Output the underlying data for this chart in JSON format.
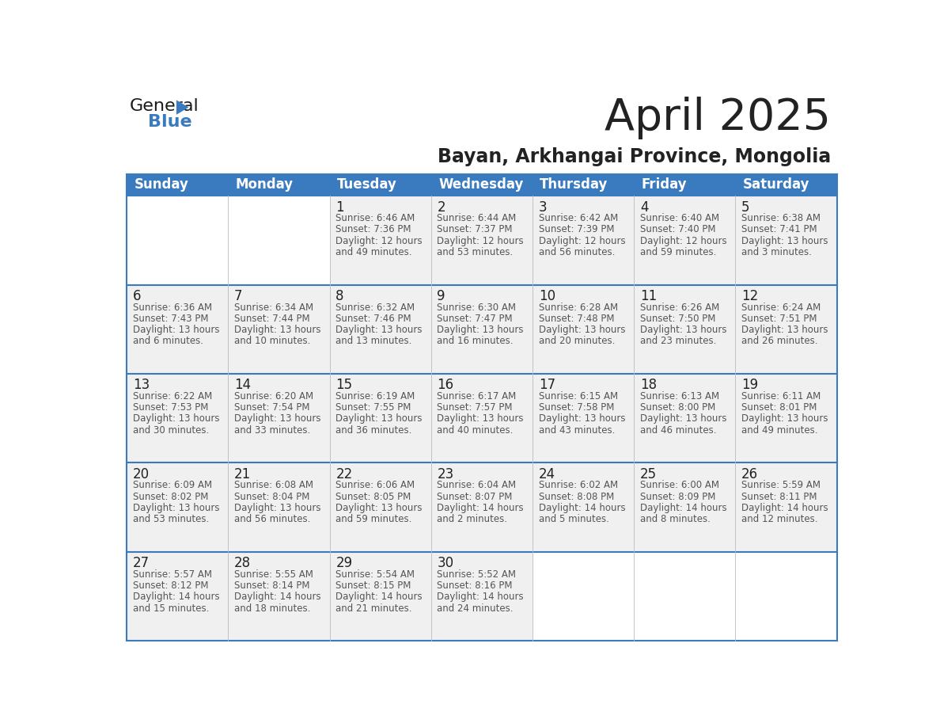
{
  "title": "April 2025",
  "subtitle": "Bayan, Arkhangai Province, Mongolia",
  "header_bg": "#3a7abf",
  "header_text_color": "#ffffff",
  "cell_bg_light": "#f0f0f0",
  "cell_bg_white": "#ffffff",
  "border_color": "#3a7abf",
  "row_border_color": "#4a90c4",
  "days_of_week": [
    "Sunday",
    "Monday",
    "Tuesday",
    "Wednesday",
    "Thursday",
    "Friday",
    "Saturday"
  ],
  "weeks": [
    [
      {
        "day": "",
        "sunrise": "",
        "sunset": "",
        "daylight": ""
      },
      {
        "day": "",
        "sunrise": "",
        "sunset": "",
        "daylight": ""
      },
      {
        "day": "1",
        "sunrise": "Sunrise: 6:46 AM",
        "sunset": "Sunset: 7:36 PM",
        "daylight": "Daylight: 12 hours\nand 49 minutes."
      },
      {
        "day": "2",
        "sunrise": "Sunrise: 6:44 AM",
        "sunset": "Sunset: 7:37 PM",
        "daylight": "Daylight: 12 hours\nand 53 minutes."
      },
      {
        "day": "3",
        "sunrise": "Sunrise: 6:42 AM",
        "sunset": "Sunset: 7:39 PM",
        "daylight": "Daylight: 12 hours\nand 56 minutes."
      },
      {
        "day": "4",
        "sunrise": "Sunrise: 6:40 AM",
        "sunset": "Sunset: 7:40 PM",
        "daylight": "Daylight: 12 hours\nand 59 minutes."
      },
      {
        "day": "5",
        "sunrise": "Sunrise: 6:38 AM",
        "sunset": "Sunset: 7:41 PM",
        "daylight": "Daylight: 13 hours\nand 3 minutes."
      }
    ],
    [
      {
        "day": "6",
        "sunrise": "Sunrise: 6:36 AM",
        "sunset": "Sunset: 7:43 PM",
        "daylight": "Daylight: 13 hours\nand 6 minutes."
      },
      {
        "day": "7",
        "sunrise": "Sunrise: 6:34 AM",
        "sunset": "Sunset: 7:44 PM",
        "daylight": "Daylight: 13 hours\nand 10 minutes."
      },
      {
        "day": "8",
        "sunrise": "Sunrise: 6:32 AM",
        "sunset": "Sunset: 7:46 PM",
        "daylight": "Daylight: 13 hours\nand 13 minutes."
      },
      {
        "day": "9",
        "sunrise": "Sunrise: 6:30 AM",
        "sunset": "Sunset: 7:47 PM",
        "daylight": "Daylight: 13 hours\nand 16 minutes."
      },
      {
        "day": "10",
        "sunrise": "Sunrise: 6:28 AM",
        "sunset": "Sunset: 7:48 PM",
        "daylight": "Daylight: 13 hours\nand 20 minutes."
      },
      {
        "day": "11",
        "sunrise": "Sunrise: 6:26 AM",
        "sunset": "Sunset: 7:50 PM",
        "daylight": "Daylight: 13 hours\nand 23 minutes."
      },
      {
        "day": "12",
        "sunrise": "Sunrise: 6:24 AM",
        "sunset": "Sunset: 7:51 PM",
        "daylight": "Daylight: 13 hours\nand 26 minutes."
      }
    ],
    [
      {
        "day": "13",
        "sunrise": "Sunrise: 6:22 AM",
        "sunset": "Sunset: 7:53 PM",
        "daylight": "Daylight: 13 hours\nand 30 minutes."
      },
      {
        "day": "14",
        "sunrise": "Sunrise: 6:20 AM",
        "sunset": "Sunset: 7:54 PM",
        "daylight": "Daylight: 13 hours\nand 33 minutes."
      },
      {
        "day": "15",
        "sunrise": "Sunrise: 6:19 AM",
        "sunset": "Sunset: 7:55 PM",
        "daylight": "Daylight: 13 hours\nand 36 minutes."
      },
      {
        "day": "16",
        "sunrise": "Sunrise: 6:17 AM",
        "sunset": "Sunset: 7:57 PM",
        "daylight": "Daylight: 13 hours\nand 40 minutes."
      },
      {
        "day": "17",
        "sunrise": "Sunrise: 6:15 AM",
        "sunset": "Sunset: 7:58 PM",
        "daylight": "Daylight: 13 hours\nand 43 minutes."
      },
      {
        "day": "18",
        "sunrise": "Sunrise: 6:13 AM",
        "sunset": "Sunset: 8:00 PM",
        "daylight": "Daylight: 13 hours\nand 46 minutes."
      },
      {
        "day": "19",
        "sunrise": "Sunrise: 6:11 AM",
        "sunset": "Sunset: 8:01 PM",
        "daylight": "Daylight: 13 hours\nand 49 minutes."
      }
    ],
    [
      {
        "day": "20",
        "sunrise": "Sunrise: 6:09 AM",
        "sunset": "Sunset: 8:02 PM",
        "daylight": "Daylight: 13 hours\nand 53 minutes."
      },
      {
        "day": "21",
        "sunrise": "Sunrise: 6:08 AM",
        "sunset": "Sunset: 8:04 PM",
        "daylight": "Daylight: 13 hours\nand 56 minutes."
      },
      {
        "day": "22",
        "sunrise": "Sunrise: 6:06 AM",
        "sunset": "Sunset: 8:05 PM",
        "daylight": "Daylight: 13 hours\nand 59 minutes."
      },
      {
        "day": "23",
        "sunrise": "Sunrise: 6:04 AM",
        "sunset": "Sunset: 8:07 PM",
        "daylight": "Daylight: 14 hours\nand 2 minutes."
      },
      {
        "day": "24",
        "sunrise": "Sunrise: 6:02 AM",
        "sunset": "Sunset: 8:08 PM",
        "daylight": "Daylight: 14 hours\nand 5 minutes."
      },
      {
        "day": "25",
        "sunrise": "Sunrise: 6:00 AM",
        "sunset": "Sunset: 8:09 PM",
        "daylight": "Daylight: 14 hours\nand 8 minutes."
      },
      {
        "day": "26",
        "sunrise": "Sunrise: 5:59 AM",
        "sunset": "Sunset: 8:11 PM",
        "daylight": "Daylight: 14 hours\nand 12 minutes."
      }
    ],
    [
      {
        "day": "27",
        "sunrise": "Sunrise: 5:57 AM",
        "sunset": "Sunset: 8:12 PM",
        "daylight": "Daylight: 14 hours\nand 15 minutes."
      },
      {
        "day": "28",
        "sunrise": "Sunrise: 5:55 AM",
        "sunset": "Sunset: 8:14 PM",
        "daylight": "Daylight: 14 hours\nand 18 minutes."
      },
      {
        "day": "29",
        "sunrise": "Sunrise: 5:54 AM",
        "sunset": "Sunset: 8:15 PM",
        "daylight": "Daylight: 14 hours\nand 21 minutes."
      },
      {
        "day": "30",
        "sunrise": "Sunrise: 5:52 AM",
        "sunset": "Sunset: 8:16 PM",
        "daylight": "Daylight: 14 hours\nand 24 minutes."
      },
      {
        "day": "",
        "sunrise": "",
        "sunset": "",
        "daylight": ""
      },
      {
        "day": "",
        "sunrise": "",
        "sunset": "",
        "daylight": ""
      },
      {
        "day": "",
        "sunrise": "",
        "sunset": "",
        "daylight": ""
      }
    ]
  ],
  "logo_triangle_color": "#3a7abf",
  "text_color_dark": "#222222",
  "text_color_body": "#555555",
  "title_fontsize": 40,
  "subtitle_fontsize": 17,
  "header_fontsize": 12,
  "day_number_fontsize": 12,
  "cell_text_fontsize": 8.5
}
